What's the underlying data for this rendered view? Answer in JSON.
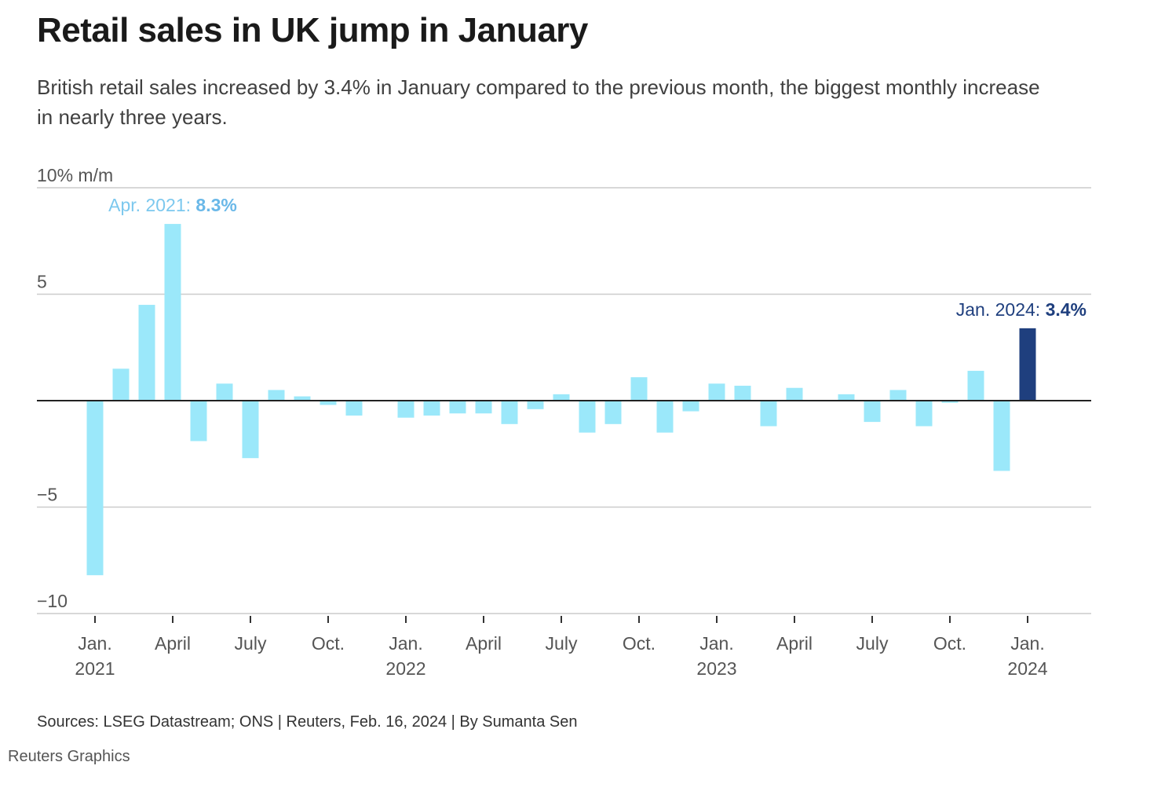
{
  "header": {
    "title": "Retail sales in UK jump in January",
    "subtitle": "British retail sales increased by 3.4% in January compared to the previous month, the biggest monthly increase in nearly three years."
  },
  "footer": {
    "source": "Sources: LSEG Datastream; ONS | Reuters, Feb. 16, 2024 | By Sumanta Sen",
    "credit": "Reuters Graphics"
  },
  "colors": {
    "bar": "#9be8fa",
    "highlight_bar": "#1f3f7e",
    "annotation_light": "#7cc8ee",
    "gridline": "#cccccc",
    "zero_line": "#222222"
  },
  "chart_data": {
    "type": "bar",
    "title": "Retail sales in UK jump in January",
    "ylabel": "% m/m",
    "y_unit_label": "10% m/m",
    "ylim": [
      -10,
      10
    ],
    "y_ticks": [
      {
        "value": 10,
        "label": "10% m/m"
      },
      {
        "value": 5,
        "label": "5"
      },
      {
        "value": -5,
        "label": "−5"
      },
      {
        "value": -10,
        "label": "−10"
      }
    ],
    "grid": true,
    "x_ticks": [
      {
        "index": 0,
        "label": "Jan.",
        "year": "2021"
      },
      {
        "index": 3,
        "label": "April",
        "year": ""
      },
      {
        "index": 6,
        "label": "July",
        "year": ""
      },
      {
        "index": 9,
        "label": "Oct.",
        "year": ""
      },
      {
        "index": 12,
        "label": "Jan.",
        "year": "2022"
      },
      {
        "index": 15,
        "label": "April",
        "year": ""
      },
      {
        "index": 18,
        "label": "July",
        "year": ""
      },
      {
        "index": 21,
        "label": "Oct.",
        "year": ""
      },
      {
        "index": 24,
        "label": "Jan.",
        "year": "2023"
      },
      {
        "index": 27,
        "label": "April",
        "year": ""
      },
      {
        "index": 30,
        "label": "July",
        "year": ""
      },
      {
        "index": 33,
        "label": "Oct.",
        "year": ""
      },
      {
        "index": 36,
        "label": "Jan.",
        "year": "2024"
      }
    ],
    "categories": [
      "2021-01",
      "2021-02",
      "2021-03",
      "2021-04",
      "2021-05",
      "2021-06",
      "2021-07",
      "2021-08",
      "2021-09",
      "2021-10",
      "2021-11",
      "2021-12",
      "2022-01",
      "2022-02",
      "2022-03",
      "2022-04",
      "2022-05",
      "2022-06",
      "2022-07",
      "2022-08",
      "2022-09",
      "2022-10",
      "2022-11",
      "2022-12",
      "2023-01",
      "2023-02",
      "2023-03",
      "2023-04",
      "2023-05",
      "2023-06",
      "2023-07",
      "2023-08",
      "2023-09",
      "2023-10",
      "2023-11",
      "2023-12",
      "2024-01"
    ],
    "values": [
      -8.2,
      1.5,
      4.5,
      8.3,
      -1.9,
      0.8,
      -2.7,
      0.5,
      0.2,
      -0.2,
      -0.7,
      0.0,
      -0.8,
      -0.7,
      -0.6,
      -0.6,
      -1.1,
      -0.4,
      0.3,
      -1.5,
      -1.1,
      1.1,
      -1.5,
      -0.5,
      0.8,
      0.7,
      -1.2,
      0.6,
      0.0,
      0.3,
      -1.0,
      0.5,
      -1.2,
      -0.1,
      1.4,
      -3.3,
      3.4
    ],
    "highlight_index": 36,
    "annotations": [
      {
        "index": 3,
        "label": "Apr. 2021: ",
        "value": "8.3%",
        "style": "light"
      },
      {
        "index": 36,
        "label": "Jan. 2024: ",
        "value": "3.4%",
        "style": "dark"
      }
    ]
  }
}
